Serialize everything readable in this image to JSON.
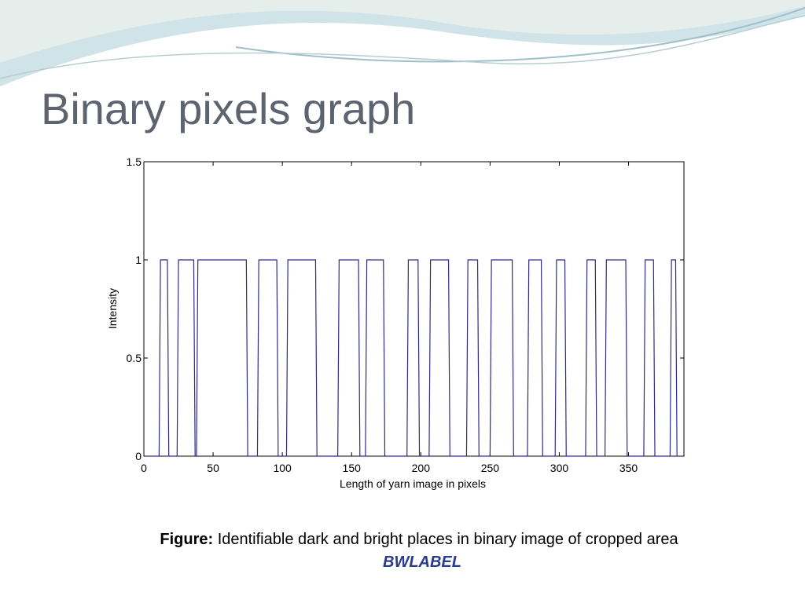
{
  "slide": {
    "title": "Binary pixels graph",
    "caption_label": "Figure:",
    "caption_text": "Identifiable dark and bright places in binary image of cropped area",
    "caption_sub": "BWLABEL"
  },
  "chart_data": {
    "type": "line",
    "x_label": "Length of yarn image in pixels",
    "y_label": "Intensity",
    "xlim": [
      0,
      390
    ],
    "ylim": [
      0,
      1.5
    ],
    "xticks": [
      0,
      50,
      100,
      150,
      200,
      250,
      300,
      350
    ],
    "yticks": [
      0,
      0.5,
      1,
      1.5
    ],
    "grid": false,
    "series": [
      {
        "color": "#2b2b8c",
        "x": [
          1,
          11,
          12,
          17,
          18,
          24,
          25,
          36,
          37,
          38,
          39,
          74,
          75,
          82,
          83,
          96,
          97,
          103,
          104,
          124,
          125,
          140,
          141,
          155,
          156,
          160,
          161,
          173,
          174,
          190,
          191,
          198,
          199,
          206,
          207,
          220,
          221,
          233,
          234,
          241,
          242,
          250,
          251,
          266,
          267,
          277,
          278,
          287,
          288,
          297,
          298,
          304,
          305,
          319,
          320,
          326,
          327,
          333,
          334,
          348,
          349,
          361,
          362,
          368,
          369,
          380,
          381,
          384,
          385,
          389
        ],
        "values": [
          0,
          0,
          1,
          1,
          0,
          0,
          1,
          1,
          0,
          0,
          1,
          1,
          0,
          0,
          1,
          1,
          0,
          0,
          1,
          1,
          0,
          0,
          1,
          1,
          0,
          0,
          1,
          1,
          0,
          0,
          1,
          1,
          0,
          0,
          1,
          1,
          0,
          0,
          1,
          1,
          0,
          0,
          1,
          1,
          0,
          0,
          1,
          1,
          0,
          0,
          1,
          1,
          0,
          0,
          1,
          1,
          0,
          0,
          1,
          1,
          0,
          0,
          1,
          1,
          0,
          0,
          1,
          1,
          0,
          0
        ]
      }
    ]
  }
}
